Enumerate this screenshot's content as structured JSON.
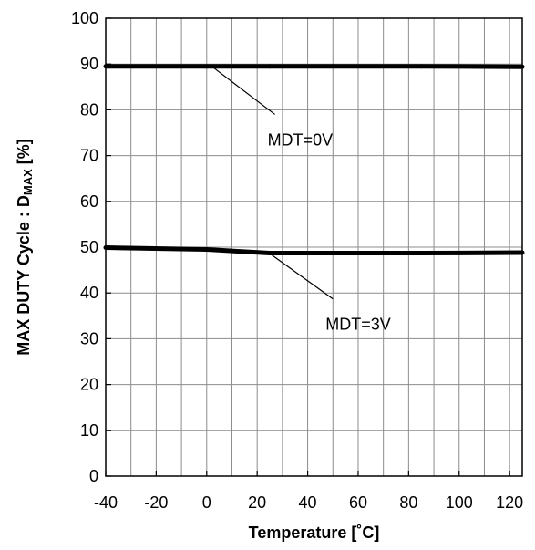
{
  "chart_data": {
    "type": "line",
    "xlabel": "Temperature [˚C]",
    "ylabel": {
      "prefix": "MAX DUTY Cycle : D",
      "subscript": "MAX",
      "suffix": " [%]"
    },
    "xlim": [
      -40,
      125
    ],
    "ylim": [
      0,
      100
    ],
    "x_ticks": [
      -40,
      -20,
      0,
      20,
      40,
      60,
      80,
      100,
      120
    ],
    "y_ticks": [
      0,
      10,
      20,
      30,
      40,
      50,
      60,
      70,
      80,
      90,
      100
    ],
    "grid": true,
    "legend": "none",
    "series": [
      {
        "x": [
          -40,
          0,
          25,
          50,
          85,
          125
        ],
        "y": [
          89.5,
          89.5,
          89.5,
          89.5,
          89.5,
          89.4
        ]
      },
      {
        "x": [
          -40,
          0,
          25,
          50,
          85,
          125
        ],
        "y": [
          49.9,
          49.5,
          48.7,
          48.7,
          48.7,
          48.8
        ]
      }
    ],
    "annotations": [
      {
        "text": "MDT=0V",
        "point": [
          2,
          89.5
        ],
        "target": [
          27,
          79
        ]
      },
      {
        "text": "MDT=3V",
        "point": [
          25,
          48.6
        ],
        "target": [
          50,
          38.7
        ]
      }
    ],
    "colors": {
      "line": "#000000",
      "grid": "#8c8c8c",
      "axis": "#000000",
      "background": "#ffffff"
    }
  }
}
